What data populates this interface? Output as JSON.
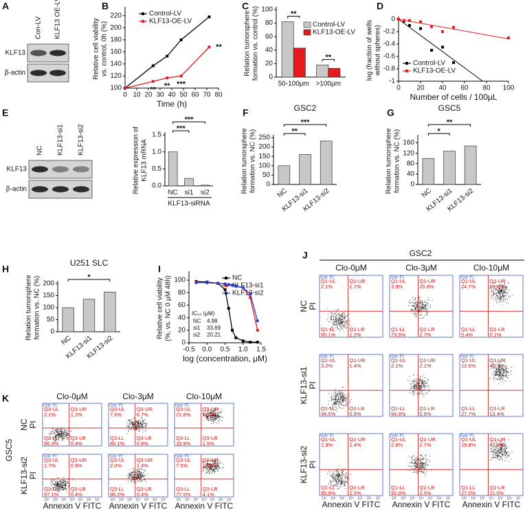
{
  "blots": [
    {
      "panel": "A",
      "lanes": [
        "Con-LV",
        "KLF13 OE-LV"
      ],
      "rows": [
        "KLF13",
        "β-actin"
      ]
    },
    {
      "panel": "E",
      "lanes": [
        "NC",
        "KLF13-si1",
        "KLF13-si2"
      ],
      "rows": [
        "KLF13",
        "β-actin"
      ]
    }
  ],
  "chart_data": [
    {
      "panel": "B",
      "type": "line",
      "x": [
        0,
        24,
        36,
        48,
        72
      ],
      "xlim": [
        0,
        80
      ],
      "xticks": [
        0,
        10,
        20,
        30,
        40,
        50,
        60,
        70,
        80
      ],
      "ylim": [
        100,
        230
      ],
      "yticks": [
        100,
        120,
        140,
        160,
        180,
        200,
        220
      ],
      "xlabel": "Time (h)",
      "ylabel": [
        "Relative cell viability",
        "vs. control, 0h (%)"
      ],
      "series": [
        {
          "name": "Control-LV",
          "color": "#000000",
          "values": [
            100,
            137,
            153,
            180,
            218
          ]
        },
        {
          "name": "KLF13-OE-LV",
          "color": "#e41a1c",
          "values": [
            100,
            111,
            117,
            120,
            168
          ]
        }
      ],
      "annotations": [
        "**",
        "**",
        "***",
        "**"
      ]
    },
    {
      "panel": "C",
      "type": "bar",
      "categories": [
        "50-100μm",
        ">100μm"
      ],
      "series": [
        {
          "name": "Control-LV",
          "color": "#c8c8c8",
          "values": [
            82,
            18
          ]
        },
        {
          "name": "KLF13-OE-LV",
          "color": "#e41a1c",
          "values": [
            43,
            13
          ]
        }
      ],
      "ylim": [
        0,
        100
      ],
      "yticks": [
        0,
        20,
        40,
        60,
        80,
        100
      ],
      "ylabel": [
        "Relation tumorsphere",
        "formation vs. control (%)"
      ],
      "annotations": [
        "**",
        "**"
      ]
    },
    {
      "panel": "D",
      "type": "scatter",
      "xlim": [
        0,
        100
      ],
      "xticks": [
        0,
        20,
        40,
        60,
        80,
        100
      ],
      "ylim": [
        -1,
        0
      ],
      "yticks": [
        0,
        -0.2,
        -0.4,
        -0.6,
        -0.8,
        -1
      ],
      "xlabel": "Number of cells / 100μL",
      "ylabel": [
        "log (fraction of wells",
        "without spheres)"
      ],
      "series": [
        {
          "name": "Control-LV",
          "color": "#000000",
          "x": [
            0,
            5,
            10,
            20,
            30,
            40,
            50
          ],
          "values": [
            0,
            -0.03,
            -0.1,
            -0.15,
            -0.5,
            -0.45,
            -0.7
          ]
        },
        {
          "name": "KLF13-OE-LV",
          "color": "#e41a1c",
          "x": [
            0,
            5,
            10,
            20,
            30,
            40,
            50,
            100
          ],
          "values": [
            0,
            -0.02,
            -0.02,
            -0.04,
            -0.12,
            -0.2,
            -0.13,
            -0.3
          ]
        }
      ]
    },
    {
      "type": "bar",
      "categories": [
        "NC",
        "si1",
        "si2"
      ],
      "values": [
        1.0,
        0.22,
        0.02
      ],
      "color": "#c8c8c8",
      "ylim": [
        0,
        1.5
      ],
      "yticks": [
        {
          "value": 0,
          "label": "0.0"
        },
        0.5,
        {
          "value": 1,
          "label": "1.0"
        },
        1.5
      ],
      "ylabel": [
        "Relative expression of",
        "KLF13 mRNA"
      ],
      "xgroup": "KLF13-siRNA",
      "annotations": [
        "***",
        "***"
      ]
    },
    {
      "panel": "F",
      "type": "bar",
      "title": "GSC2",
      "categories": [
        "NC",
        "KLF13-si1",
        "KLF13-si2"
      ],
      "values": [
        100,
        160,
        232
      ],
      "color": "#c8c8c8",
      "ylim": [
        0,
        250
      ],
      "yticks": [
        0,
        50,
        100,
        150,
        200,
        250
      ],
      "ylabel": [
        "Relation tumorsphere",
        "formation vs. NC (%)"
      ],
      "annotations": [
        "**",
        "***"
      ]
    },
    {
      "panel": "G",
      "type": "bar",
      "title": "GSC5",
      "categories": [
        "NC",
        "KLF13-si1",
        "KLF13-si2"
      ],
      "values": [
        100,
        128,
        148
      ],
      "color": "#c8c8c8",
      "ylim": [
        0,
        180
      ],
      "yticks": [
        0,
        40,
        80,
        120,
        160
      ],
      "ylabel": [
        "Relation tumorsphere",
        "formation vs. NC (%)"
      ],
      "annotations": [
        "*",
        "**"
      ]
    },
    {
      "panel": "H",
      "type": "bar",
      "title": "U251 SLC",
      "categories": [
        "NC",
        "KLF13-si1",
        "KLF13-si2"
      ],
      "values": [
        100,
        135,
        165
      ],
      "color": "#c8c8c8",
      "ylim": [
        0,
        200
      ],
      "yticks": [
        0,
        50,
        100,
        150,
        200
      ],
      "ylabel": [
        "Relation tumorsphere",
        "formation vs. NC (%)"
      ],
      "annotations": [
        "*"
      ]
    },
    {
      "panel": "I",
      "type": "line",
      "x": [
        -0.3,
        0,
        0.3,
        0.5,
        0.6,
        0.7,
        0.8,
        1.0,
        1.2,
        1.4
      ],
      "xlim": [
        -0.5,
        1.5
      ],
      "xticks": [
        -0.5,
        {
          "value": 0,
          "label": "0.0"
        },
        0.5,
        {
          "value": 1,
          "label": "1.0"
        },
        1.5
      ],
      "ylim": [
        0,
        110
      ],
      "yticks": [
        0,
        20,
        40,
        60,
        80,
        100
      ],
      "xlabel": "log (concentration, μM)",
      "ylabel": [
        "Relative cell viability",
        "(%, vs. NC 0 μM 48h)"
      ],
      "series": [
        {
          "name": "NC",
          "color": "#000000",
          "values": [
            98,
            97,
            95,
            85,
            55,
            20,
            8,
            3,
            1,
            1
          ]
        },
        {
          "name": "KLF13-si1",
          "color": "#e41a1c",
          "values": [
            97,
            96,
            95,
            94,
            93,
            92,
            90,
            88,
            72,
            20
          ]
        },
        {
          "name": "KLF13-si2",
          "color": "#1f3fd0",
          "values": [
            96,
            96,
            95,
            94,
            93,
            92,
            91,
            88,
            78,
            35
          ]
        }
      ],
      "ic50_title": "IC₅₀ (μM)",
      "ic50": [
        {
          "name": "NC",
          "value": 4.98
        },
        {
          "name": "si1",
          "value": 33.69
        },
        {
          "name": "si2",
          "value": 20.21
        }
      ]
    }
  ],
  "flow": [
    {
      "panel": "J",
      "title": "GSC2",
      "gate": "Gate: P1",
      "columns": [
        "Clo-0μM",
        "Clo-3μM",
        "Clo-10μM"
      ],
      "quadrants": [
        "Q1-UL",
        "Q1-UR",
        "Q1-LL",
        "Q1-LR"
      ],
      "xlabel": "Annexin V FITC",
      "ylabel": "PI",
      "axis_ticks": [
        "10¹",
        "10²",
        "10³",
        "10⁴",
        "10⁵",
        "10⁶",
        "10⁷"
      ],
      "rows": [
        {
          "name": "NC",
          "cells": [
            [
              "2.1%",
              "1.7%",
              "95.1%",
              "1.2%"
            ],
            [
              "3.9%",
              "20.8%",
              "73.5%",
              "1.7%"
            ],
            [
              "24.7%",
              "69.9%",
              "5.4%",
              "0.1%"
            ]
          ]
        },
        {
          "name": "KLF13-si1",
          "cells": [
            [
              "3.2%",
              "1.4%",
              "94.5%",
              "0.9%"
            ],
            [
              "2.1%",
              "2.1%",
              "94.9%",
              "0.9%"
            ],
            [
              "12.6%",
              "46.3%",
              "27.7%",
              "13.4%"
            ]
          ]
        },
        {
          "name": "KLF13-si2",
          "cells": [
            [
              "1.9%",
              "1.4%",
              "95.6%",
              "1.0%"
            ],
            [
              "2.8%",
              "2.7%",
              "92.0%",
              "2.5%"
            ],
            [
              "19.8%",
              "42.3%",
              "27.0%",
              "11.0%"
            ]
          ]
        }
      ]
    },
    {
      "panel": "K",
      "title": "GSC5",
      "gate": "Gate: P2",
      "columns": [
        "Clo-0μM",
        "Clo-3μM",
        "Clo-10μM"
      ],
      "quadrants": [
        "Q3-UL",
        "Q3-UR",
        "Q3-LL",
        "Q3-LR"
      ],
      "xlabel": "Annexin V FITC",
      "ylabel": "PI",
      "axis_ticks": [
        "10¹",
        "10²",
        "10³",
        "10⁴",
        "10⁵",
        "10⁶",
        "10⁷"
      ],
      "rows": [
        {
          "name": "NC",
          "cells": [
            [
              "2.1%",
              "1.2%",
              "96.3%",
              "0.4%"
            ],
            [
              "7.6%",
              "6.7%",
              "85.1%",
              "0.6%"
            ],
            [
              "21.8%",
              "57.9%",
              "18.9%",
              "1.5%"
            ]
          ]
        },
        {
          "name": "KLF13-si2",
          "cells": [
            [
              "1.7%",
              "0.9%",
              "97.1%",
              "0.4%"
            ],
            [
              "2.0%",
              "1.4%",
              "96.2%",
              "0.4%"
            ],
            [
              "7.5%",
              "10.8%",
              "77.5%",
              "4.1%"
            ]
          ]
        }
      ]
    }
  ]
}
